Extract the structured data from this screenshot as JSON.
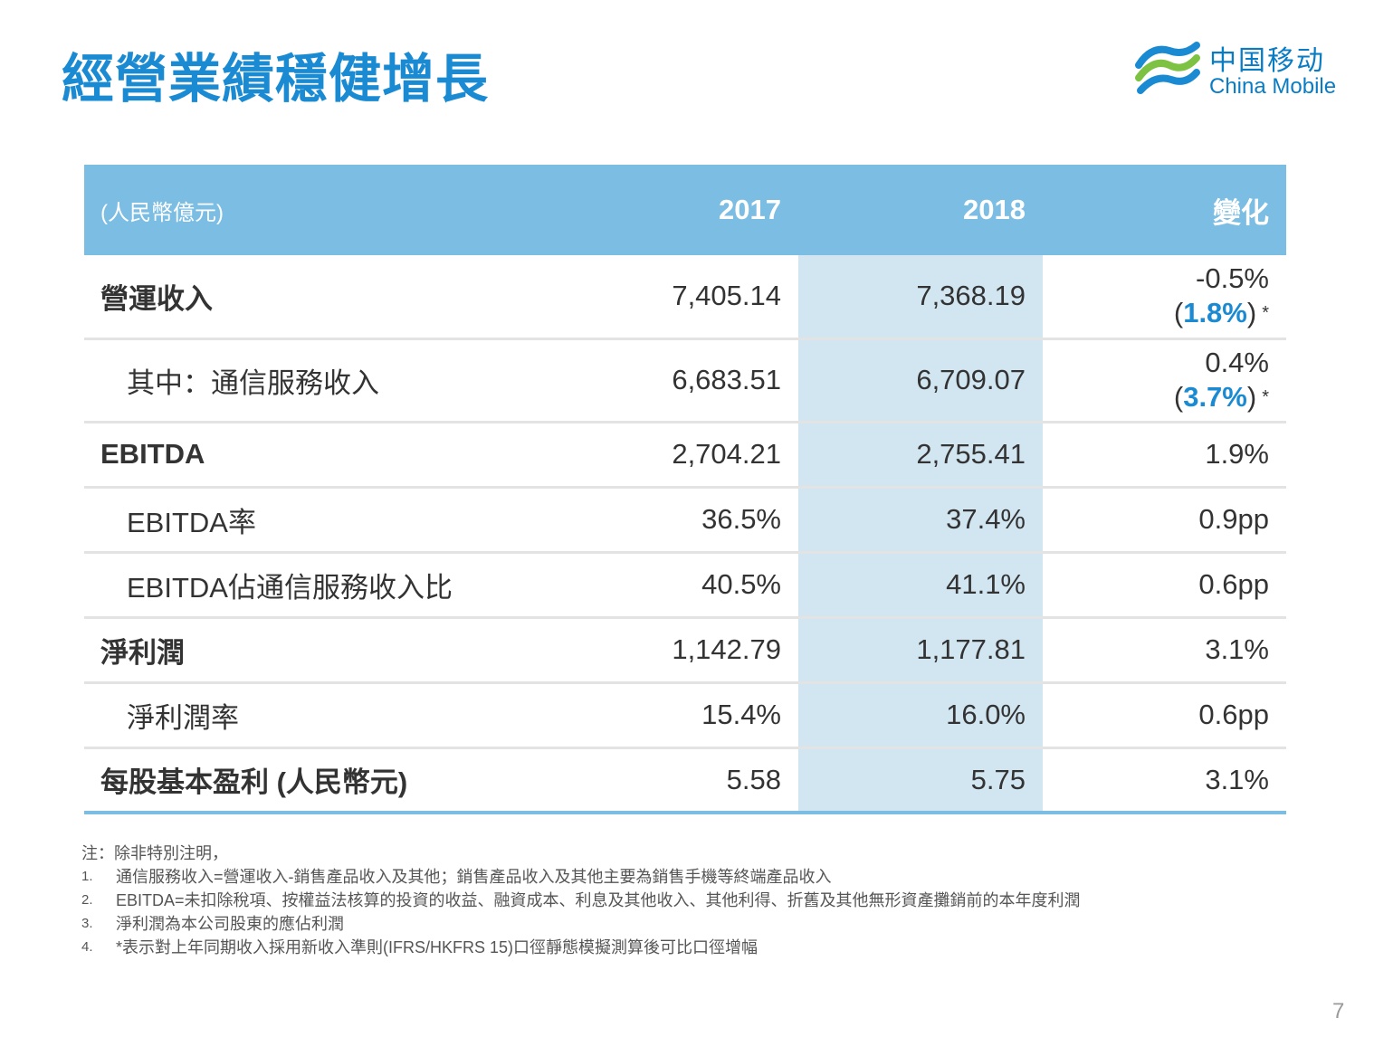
{
  "title": "經營業績穩健增長",
  "logo": {
    "cn": "中国移动",
    "en": "China Mobile"
  },
  "table": {
    "unit": "(人民幣億元)",
    "headers": [
      "2017",
      "2018",
      "變化"
    ],
    "rows": [
      {
        "label": "營運收入",
        "v2017": "7,405.14",
        "v2018": "7,368.19",
        "change": "-0.5%",
        "adjusted": "1.8%",
        "star": "*"
      },
      {
        "label": "其中：通信服務收入",
        "v2017": "6,683.51",
        "v2018": "6,709.07",
        "change": "0.4%",
        "adjusted": "3.7%",
        "star": "*"
      },
      {
        "label": "EBITDA",
        "v2017": "2,704.21",
        "v2018": "2,755.41",
        "change": "1.9%"
      },
      {
        "label": "EBITDA率",
        "v2017": "36.5%",
        "v2018": "37.4%",
        "change": "0.9pp"
      },
      {
        "label": "EBITDA佔通信服務收入比",
        "v2017": "40.5%",
        "v2018": "41.1%",
        "change": "0.6pp"
      },
      {
        "label": "淨利潤",
        "v2017": "1,142.79",
        "v2018": "1,177.81",
        "change": "3.1%"
      },
      {
        "label": "淨利潤率",
        "v2017": "15.4%",
        "v2018": "16.0%",
        "change": "0.6pp"
      },
      {
        "label": "每股基本盈利 (人民幣元)",
        "v2017": "5.58",
        "v2018": "5.75",
        "change": "3.1%"
      }
    ]
  },
  "notes": {
    "intro": "注：除非特別注明，",
    "items": [
      {
        "num": "1.",
        "text": "通信服務收入=營運收入-銷售產品收入及其他；銷售產品收入及其他主要為銷售手機等終端產品收入"
      },
      {
        "num": "2.",
        "text": "EBITDA=未扣除稅項、按權益法核算的投資的收益、融資成本、利息及其他收入、其他利得、折舊及其他無形資產攤銷前的本年度利潤"
      },
      {
        "num": "3.",
        "text": "淨利潤為本公司股東的應佔利潤"
      },
      {
        "num": "4.",
        "text": "*表示對上年同期收入採用新收入準則(IFRS/HKFRS 15)口徑靜態模擬測算後可比口徑增幅"
      }
    ]
  },
  "page_number": "7"
}
